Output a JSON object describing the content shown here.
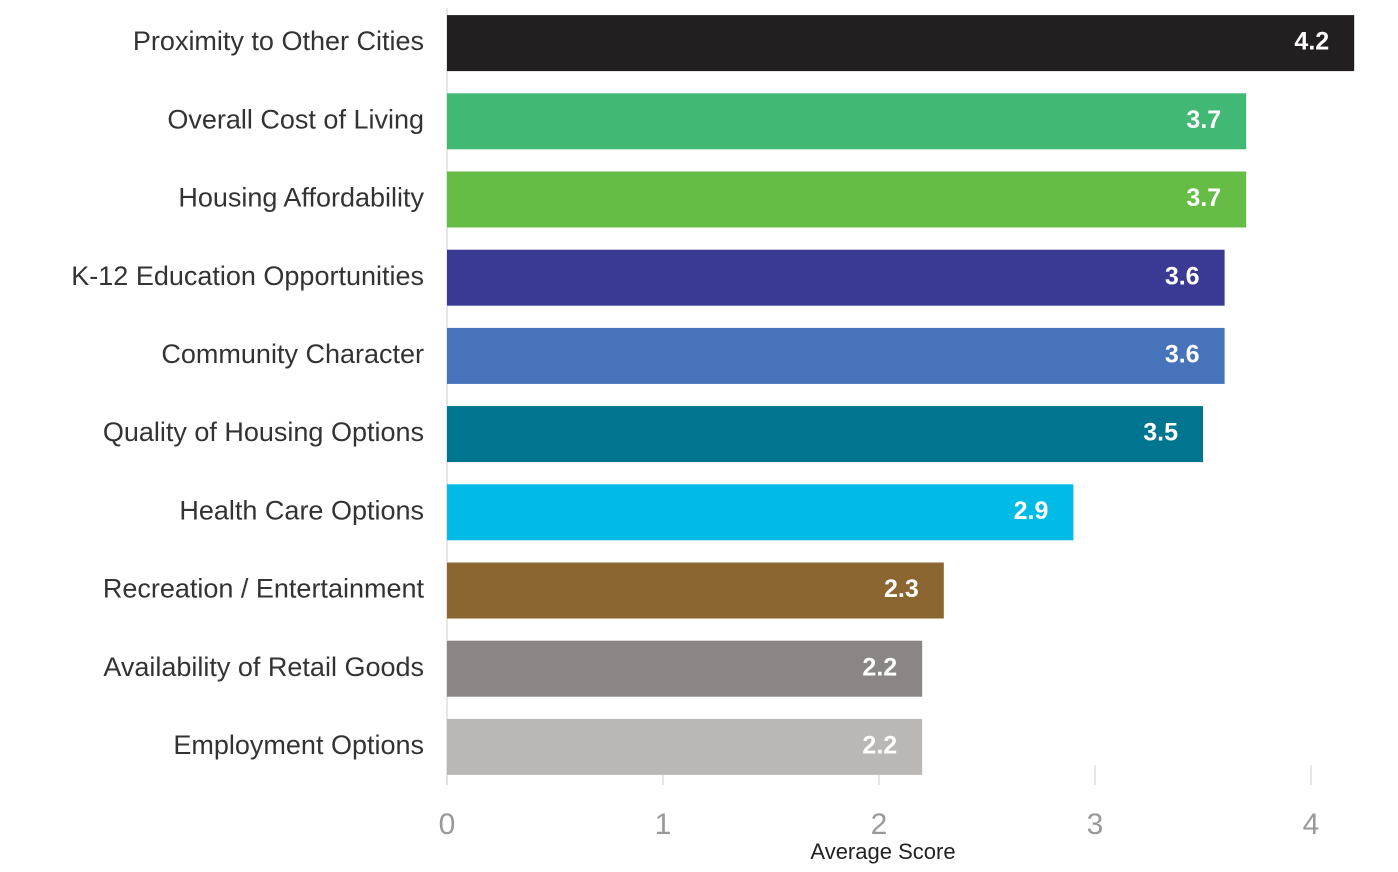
{
  "chart_data": {
    "type": "bar",
    "orientation": "horizontal",
    "x_label": "Average Score",
    "categories": [
      "Proximity to Other Cities",
      "Overall Cost of Living",
      "Housing Affordability",
      "K-12 Education Opportunities",
      "Community Character",
      "Quality of Housing Options",
      "Health Care Options",
      "Recreation / Entertainment",
      "Availability of Retail Goods",
      "Employment Options"
    ],
    "values": [
      4.2,
      3.7,
      3.7,
      3.6,
      3.6,
      3.5,
      2.9,
      2.3,
      2.2,
      2.2
    ],
    "colors": [
      "#231f20",
      "#41b874",
      "#66bd45",
      "#3a3993",
      "#4673b9",
      "#00758f",
      "#00bbe6",
      "#8c6630",
      "#8b8685",
      "#bbb7b4"
    ],
    "xlim": [
      0,
      4.4
    ],
    "xticks": [
      0,
      1,
      2,
      3,
      4
    ]
  }
}
